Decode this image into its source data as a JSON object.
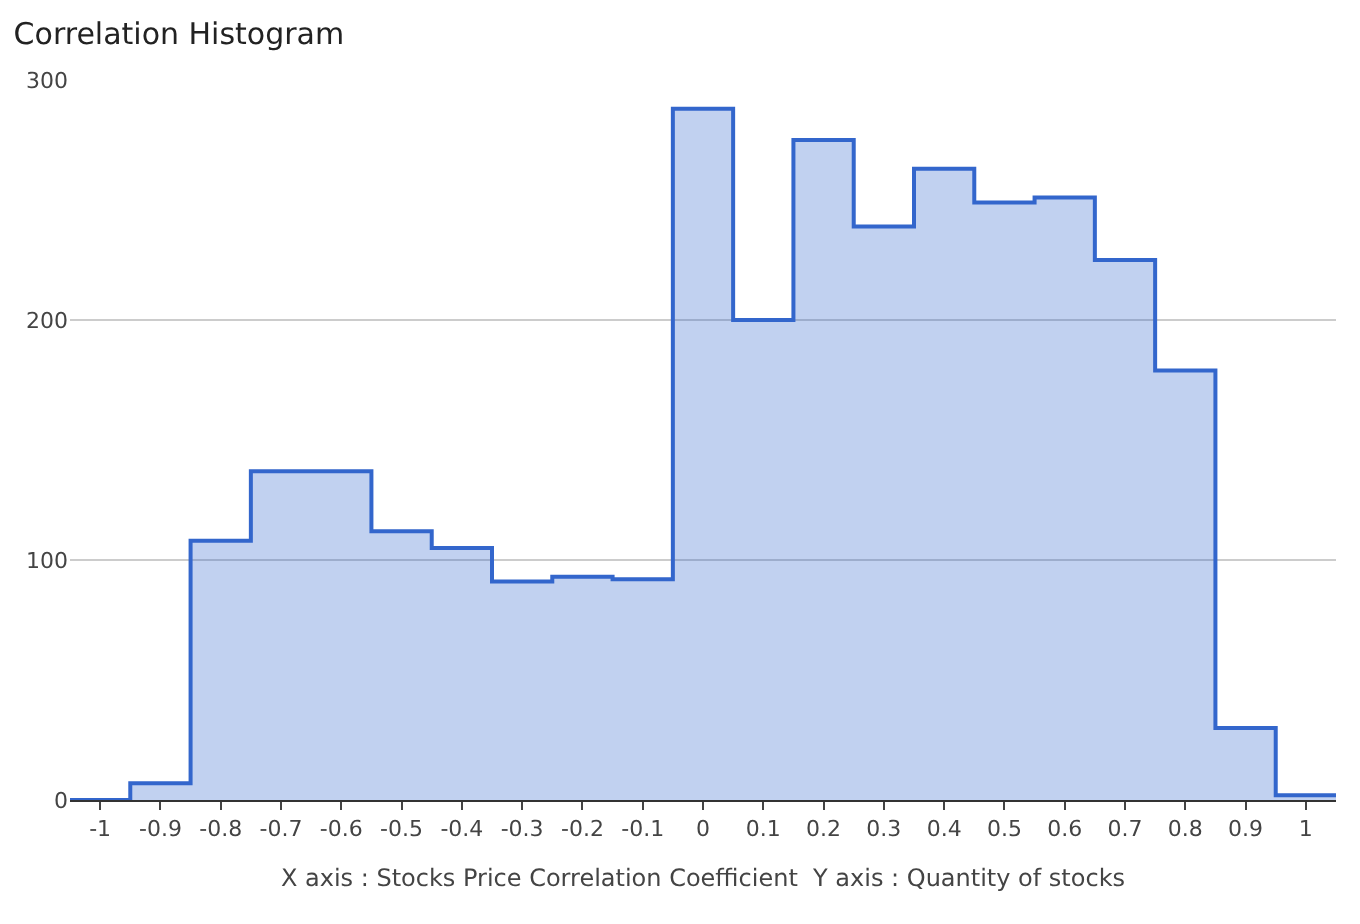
{
  "chart_data": {
    "type": "histogram",
    "title": "Correlation Histogram",
    "xlabel": "X axis : Stocks Price Correlation Coefficient  Y axis : Quantity of stocks",
    "bins": [
      -1.05,
      -0.95,
      -0.85,
      -0.75,
      -0.65,
      -0.55,
      -0.45,
      -0.35,
      -0.25,
      -0.15,
      -0.05,
      0.05,
      0.15,
      0.25,
      0.35,
      0.45,
      0.55,
      0.65,
      0.75,
      0.85,
      0.95,
      1.05
    ],
    "values": [
      0,
      7,
      108,
      137,
      137,
      112,
      105,
      91,
      93,
      92,
      288,
      200,
      275,
      239,
      263,
      249,
      251,
      225,
      179,
      30,
      2
    ],
    "color": "#3366cc",
    "xlim": [
      -1.05,
      1.05
    ],
    "xticks": [
      -1,
      -0.9,
      -0.8,
      -0.7,
      -0.6,
      -0.5,
      -0.4,
      -0.3,
      -0.2,
      -0.1,
      0,
      0.1,
      0.2,
      0.3,
      0.4,
      0.5,
      0.6,
      0.7,
      0.8,
      0.9,
      1
    ],
    "ylim": [
      0,
      300
    ],
    "yticks": [
      0,
      100,
      200,
      300
    ],
    "grid": "y"
  }
}
